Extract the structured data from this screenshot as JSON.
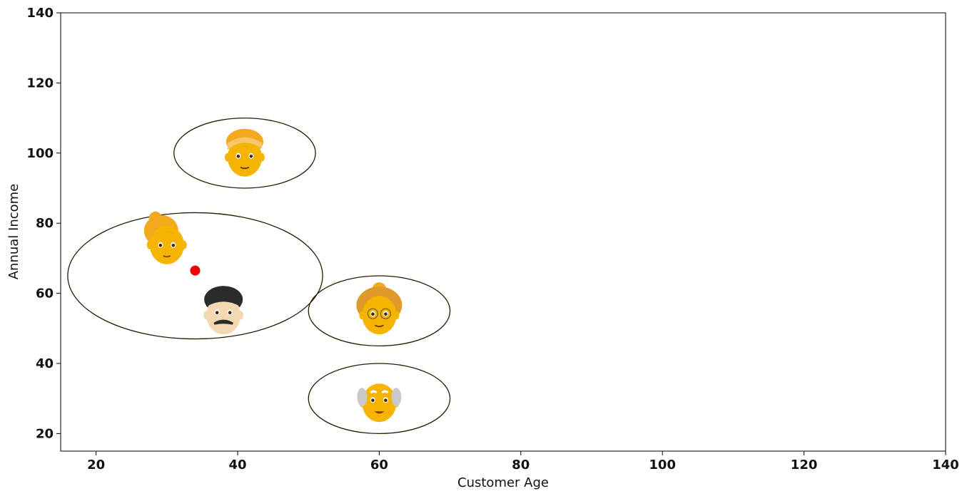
{
  "chart_data": {
    "type": "scatter",
    "xlabel": "Customer Age",
    "ylabel": "Annual Income",
    "xlim": [
      15,
      140
    ],
    "ylim": [
      15,
      140
    ],
    "xticks": [
      20,
      40,
      60,
      80,
      100,
      120,
      140
    ],
    "yticks": [
      20,
      40,
      60,
      80,
      100,
      120,
      140
    ],
    "grid": false,
    "points": [
      {
        "icon": "woman-blonde-icon",
        "x": 30,
        "y": 75
      },
      {
        "icon": "man-mustache-icon",
        "x": 38,
        "y": 55
      },
      {
        "icon": "man-blonde-icon",
        "x": 41,
        "y": 100
      },
      {
        "icon": "old-woman-icon",
        "x": 60,
        "y": 55
      },
      {
        "icon": "old-man-icon",
        "x": 60,
        "y": 30
      }
    ],
    "centroid": {
      "x": 34,
      "y": 66.5,
      "color": "#ee0000"
    },
    "clusters": [
      {
        "cx": 41,
        "cy": 100,
        "rx": 10,
        "ry": 10
      },
      {
        "cx": 34,
        "cy": 65,
        "rx": 18,
        "ry": 18
      },
      {
        "cx": 60,
        "cy": 55,
        "rx": 10,
        "ry": 10
      },
      {
        "cx": 60,
        "cy": 30,
        "rx": 10,
        "ry": 10
      }
    ],
    "colors": {
      "ellipse": "#2b1a00",
      "skin": "#f4b400",
      "skin_light": "#f3d9b1",
      "hair_blonde": "#f2a91d",
      "hair_dark": "#2b2b2b",
      "hair_gray": "#c9c9c9"
    }
  }
}
